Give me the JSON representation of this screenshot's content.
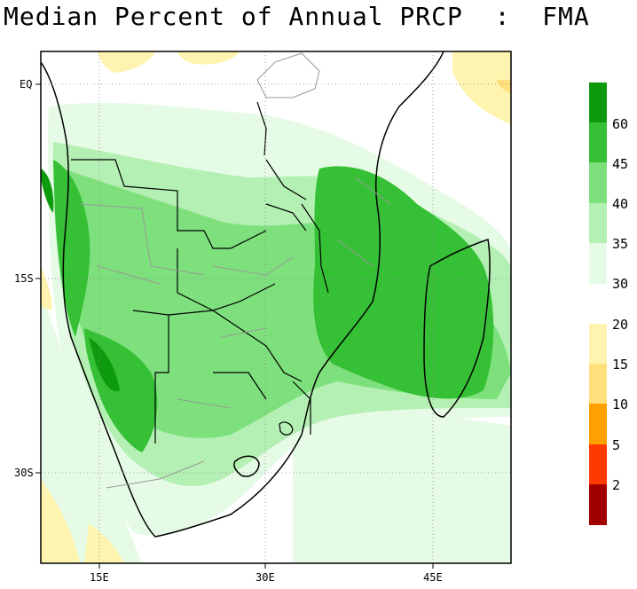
{
  "title": "Median Percent of Annual PRCP  :  FMA",
  "lat_labels": [
    "EQ",
    "15S",
    "30S"
  ],
  "lon_labels": [
    "15E",
    "30E",
    "45E"
  ],
  "colorbar_upper": {
    "labels": [
      "60",
      "45",
      "40",
      "35",
      "30"
    ],
    "colors": [
      "#0d9a0d",
      "#35c035",
      "#7de07d",
      "#b4f0b4",
      "#e6fbe6"
    ]
  },
  "colorbar_lower": {
    "labels": [
      "20",
      "15",
      "10",
      "5",
      "2"
    ],
    "colors": [
      "#fff3b0",
      "#ffe07a",
      "#ffa000",
      "#ff3a00",
      "#a00000"
    ]
  }
}
